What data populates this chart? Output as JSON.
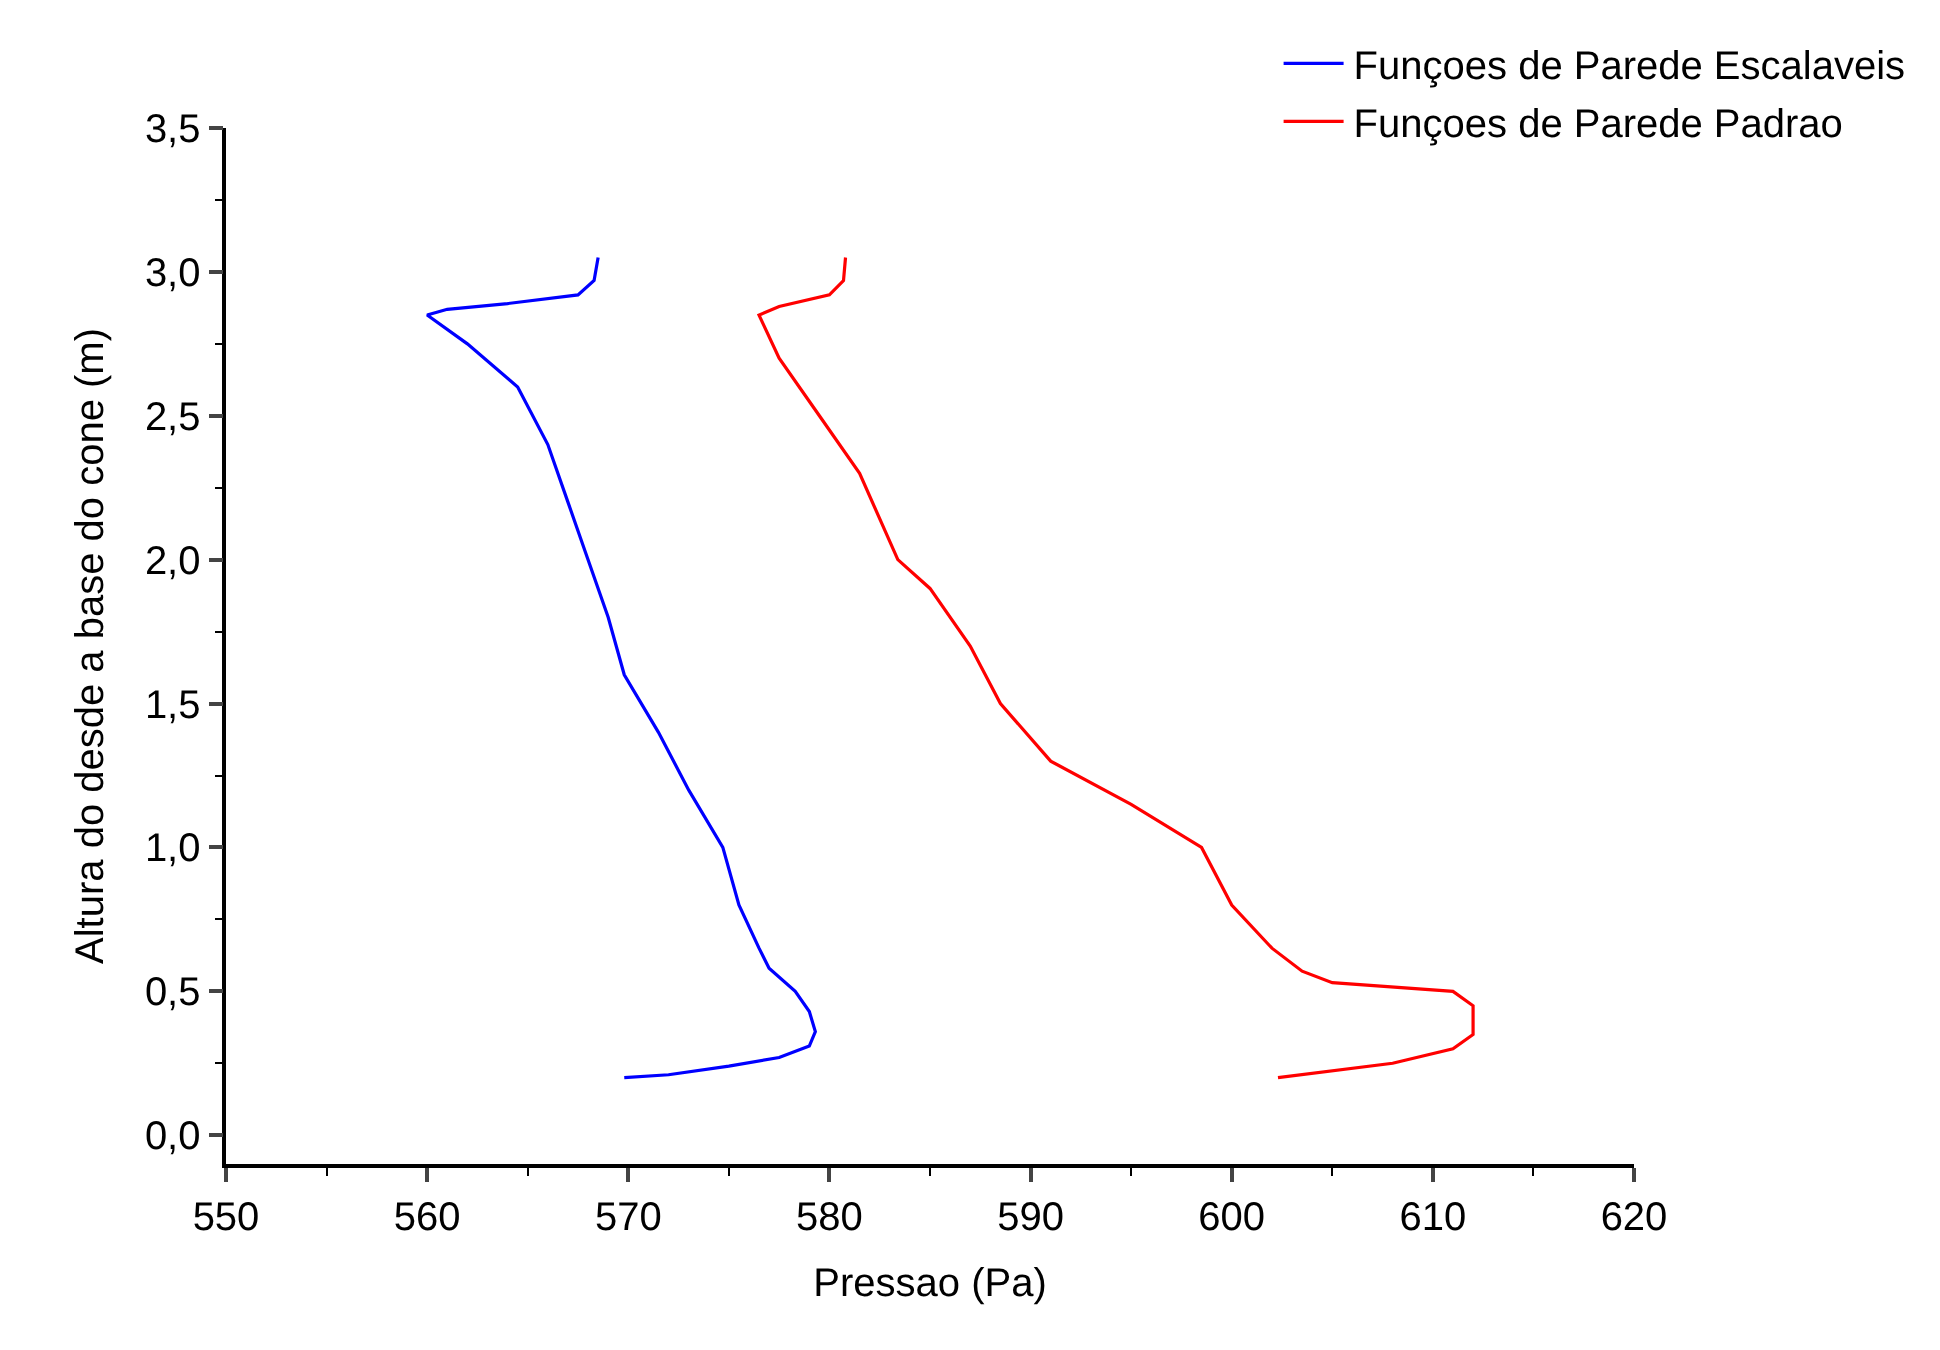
{
  "chart_data": {
    "type": "line",
    "xlabel": "Pressao (Pa)",
    "ylabel": "Altura do desde a base do cone (m)",
    "xlim": [
      550,
      620
    ],
    "xticks": [
      550,
      560,
      570,
      580,
      590,
      600,
      610,
      620
    ],
    "ylim": [
      -0.1,
      3.5
    ],
    "yticks": [
      {
        "value": 0,
        "label": "0,0"
      },
      {
        "value": 0.5,
        "label": "0,5"
      },
      {
        "value": 1,
        "label": "1,0"
      },
      {
        "value": 1.5,
        "label": "1,5"
      },
      {
        "value": 2,
        "label": "2,0"
      },
      {
        "value": 2.5,
        "label": "2,5"
      },
      {
        "value": 3,
        "label": "3,0"
      },
      {
        "value": 3.5,
        "label": "3,5"
      }
    ],
    "legend": "top right",
    "marker": "none",
    "line_style": "solid",
    "series": [
      {
        "name": "Funçoes de Parede Escalaveis",
        "color": "#0000ff",
        "x": [
          569.8,
          572,
          575,
          577.5,
          579,
          579.3,
          579,
          578.3,
          577,
          576.5,
          575.5,
          574.7,
          573,
          571.5,
          569.8,
          569,
          568,
          567,
          566,
          564.5,
          562,
          560,
          561,
          564,
          567.5,
          568.3,
          568.5
        ],
        "values": [
          0.2,
          0.21,
          0.24,
          0.27,
          0.31,
          0.36,
          0.43,
          0.5,
          0.58,
          0.65,
          0.8,
          1.0,
          1.2,
          1.4,
          1.6,
          1.8,
          2.0,
          2.2,
          2.4,
          2.6,
          2.75,
          2.85,
          2.87,
          2.89,
          2.92,
          2.97,
          3.05
        ]
      },
      {
        "name": "Funçoes de Parede Padrao",
        "color": "#ff0000",
        "x": [
          602.3,
          608,
          611,
          612,
          612,
          611,
          605,
          603.5,
          602,
          600,
          598.5,
          595,
          591,
          588.5,
          587,
          585,
          583.4,
          581.5,
          579.5,
          577.5,
          576.5,
          577.5,
          580,
          580.7,
          580.8
        ],
        "values": [
          0.2,
          0.25,
          0.3,
          0.35,
          0.45,
          0.5,
          0.53,
          0.57,
          0.65,
          0.8,
          1.0,
          1.15,
          1.3,
          1.5,
          1.7,
          1.9,
          2.0,
          2.3,
          2.5,
          2.7,
          2.85,
          2.88,
          2.92,
          2.97,
          3.05
        ]
      }
    ]
  }
}
